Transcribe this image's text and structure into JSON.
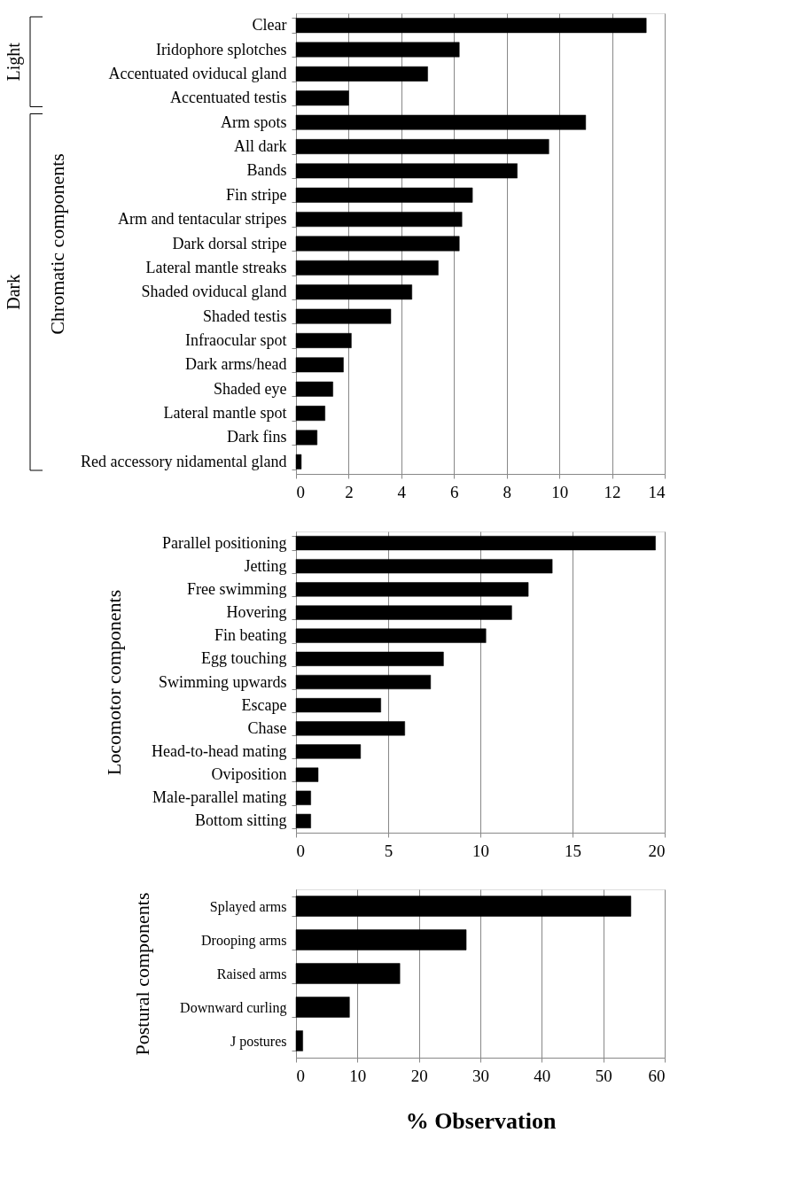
{
  "chart_data": [
    {
      "type": "bar",
      "orientation": "horizontal",
      "ylabel": "Chromatic components",
      "categories": [
        "Clear",
        "Iridophore splotches",
        "Accentuated oviducal gland",
        "Accentuated testis",
        "Arm spots",
        "All dark",
        "Bands",
        "Fin stripe",
        "Arm and tentacular stripes",
        "Dark dorsal stripe",
        "Lateral mantle streaks",
        "Shaded oviducal gland",
        "Shaded testis",
        "Infraocular spot",
        "Dark arms/head",
        "Shaded eye",
        "Lateral mantle spot",
        "Dark fins",
        "Red accessory nidamental gland"
      ],
      "values": [
        13.3,
        6.2,
        5.0,
        2.0,
        11.0,
        9.6,
        8.4,
        6.7,
        6.3,
        6.2,
        5.4,
        4.4,
        3.6,
        2.1,
        1.8,
        1.4,
        1.1,
        0.8,
        0.2
      ],
      "color": "#000000",
      "xlim": [
        0,
        14
      ],
      "xticks": [
        0,
        2,
        4,
        6,
        8,
        10,
        12,
        14
      ],
      "grid": "x",
      "annotations": [
        "Light",
        "Dark"
      ]
    },
    {
      "type": "bar",
      "orientation": "horizontal",
      "ylabel": "Locomotor  components",
      "categories": [
        "Parallel positioning",
        "Jetting",
        "Free swimming",
        "Hovering",
        "Fin beating",
        "Egg touching",
        "Swimming upwards",
        "Escape",
        "Chase",
        "Head-to-head mating",
        "Oviposition",
        "Male-parallel mating",
        "Bottom sitting"
      ],
      "values": [
        19.5,
        13.9,
        12.6,
        11.7,
        10.3,
        8.0,
        7.3,
        4.6,
        5.9,
        3.5,
        1.2,
        0.8,
        0.8
      ],
      "color": "#000000",
      "xlim": [
        0,
        20
      ],
      "xticks": [
        0,
        5,
        10,
        15,
        20
      ],
      "grid": "x"
    },
    {
      "type": "bar",
      "orientation": "horizontal",
      "ylabel": "Postural components",
      "xlabel": "% Observation",
      "categories": [
        "Splayed arms",
        "Drooping arms",
        "Raised arms",
        "Downward curling",
        "J postures"
      ],
      "values": [
        54.5,
        27.7,
        16.9,
        8.7,
        1.1
      ],
      "color": "#000000",
      "xlim": [
        0,
        60
      ],
      "xticks": [
        0,
        10,
        20,
        30,
        40,
        50,
        60
      ],
      "grid": "x"
    }
  ]
}
